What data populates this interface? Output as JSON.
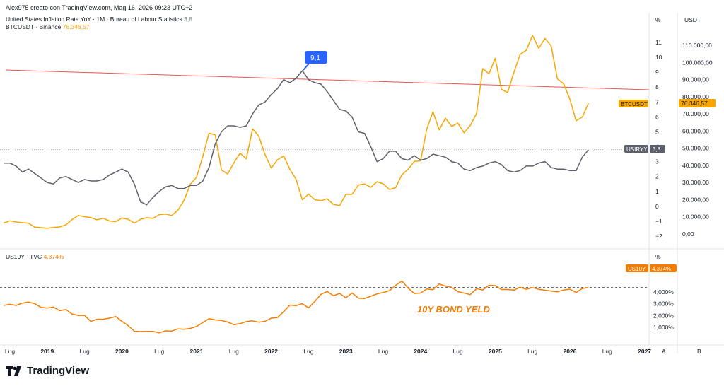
{
  "header": {
    "author_line": "Alex975 creato con TradingView.com, Mag 16, 2026 09:23 UTC+2"
  },
  "legend": {
    "inflation_label": "United States Inflation Rate YoY · 1M · Bureau of Labour Statistics",
    "inflation_value": "3,8",
    "btc_label": "BTCUSDT · Binance",
    "btc_value": "76.346,57",
    "bond_label": "US10Y · TVC",
    "bond_value": "4,374%"
  },
  "axes": {
    "left_unit": "%",
    "right_unit": "USDT",
    "bottom_unit": "%",
    "left_ticks": [
      "11",
      "10",
      "9",
      "8",
      "7",
      "6",
      "5",
      "4",
      "3",
      "2",
      "1",
      "0",
      "−1",
      "−2"
    ],
    "right_ticks": [
      "110.000,00",
      "100.000,00",
      "90.000,00",
      "80.000,00",
      "70.000,00",
      "60.000,00",
      "50.000,00",
      "40.000,00",
      "30.000,00",
      "20.000,00",
      "10.000,00",
      "0,00"
    ],
    "bond_ticks": [
      "4,000%",
      "3,000%",
      "2,000%",
      "1,000%"
    ],
    "x_labels": [
      "Lug",
      "2019",
      "Lug",
      "2020",
      "Lug",
      "2021",
      "Lug",
      "2022",
      "Lug",
      "2023",
      "Lug",
      "2024",
      "Lug",
      "2025",
      "Lug",
      "2026",
      "Lug",
      "2027"
    ],
    "corner_a": "A",
    "corner_b": "B"
  },
  "tags": {
    "btc_tag": "BTCUSDT",
    "btc_price": "76.346,57",
    "usiryy_tag": "USIRYY",
    "usiryy_value": "3,8",
    "us10y_tag": "US10Y",
    "us10y_value": "4,374%",
    "peak_label": "9,1"
  },
  "annotation": {
    "bond_note": "10Y BOND YELD"
  },
  "brand": {
    "logo_text": "TradingView"
  },
  "colors": {
    "inflation": "#5d606b",
    "btc": "#f7a600",
    "bond": "#f57c00",
    "trendline": "#ef5350",
    "peak_badge": "#2962ff"
  },
  "chart_data": [
    {
      "type": "line",
      "title": "United States Inflation Rate YoY",
      "ylabel": "%",
      "ylim": [
        -2,
        11
      ],
      "series": [
        {
          "name": "United States Inflation Rate YoY",
          "x": [
            "2018-06",
            "2018-07",
            "2018-08",
            "2018-09",
            "2018-10",
            "2018-11",
            "2018-12",
            "2019-01",
            "2019-02",
            "2019-03",
            "2019-04",
            "2019-05",
            "2019-06",
            "2019-07",
            "2019-08",
            "2019-09",
            "2019-10",
            "2019-11",
            "2019-12",
            "2020-01",
            "2020-02",
            "2020-03",
            "2020-04",
            "2020-05",
            "2020-06",
            "2020-07",
            "2020-08",
            "2020-09",
            "2020-10",
            "2020-11",
            "2020-12",
            "2021-01",
            "2021-02",
            "2021-03",
            "2021-04",
            "2021-05",
            "2021-06",
            "2021-07",
            "2021-08",
            "2021-09",
            "2021-10",
            "2021-11",
            "2021-12",
            "2022-01",
            "2022-02",
            "2022-03",
            "2022-04",
            "2022-05",
            "2022-06",
            "2022-07",
            "2022-08",
            "2022-09",
            "2022-10",
            "2022-11",
            "2022-12",
            "2023-01",
            "2023-02",
            "2023-03",
            "2023-04",
            "2023-05",
            "2023-06",
            "2023-07",
            "2023-08",
            "2023-09",
            "2023-10",
            "2023-11",
            "2023-12",
            "2024-01",
            "2024-02",
            "2024-03",
            "2024-04",
            "2024-05",
            "2024-06",
            "2024-07",
            "2024-08",
            "2024-09",
            "2024-10",
            "2024-11",
            "2024-12",
            "2025-01",
            "2025-02",
            "2025-03",
            "2025-04",
            "2025-05",
            "2025-06",
            "2025-07",
            "2025-08",
            "2025-09",
            "2025-10",
            "2025-11",
            "2025-12",
            "2026-01",
            "2026-02",
            "2026-03",
            "2026-04"
          ],
          "values": [
            2.9,
            2.9,
            2.7,
            2.3,
            2.5,
            2.2,
            1.9,
            1.6,
            1.5,
            1.9,
            2.0,
            1.8,
            1.6,
            1.8,
            1.7,
            1.7,
            1.8,
            2.1,
            2.3,
            2.5,
            2.3,
            1.5,
            0.3,
            0.1,
            0.6,
            1.0,
            1.3,
            1.4,
            1.2,
            1.2,
            1.4,
            1.4,
            1.7,
            2.6,
            4.2,
            5.0,
            5.4,
            5.4,
            5.3,
            5.4,
            6.2,
            6.8,
            7.0,
            7.5,
            7.9,
            8.5,
            8.3,
            8.6,
            9.1,
            8.5,
            8.3,
            8.2,
            7.7,
            7.1,
            6.5,
            6.4,
            6.0,
            5.0,
            4.9,
            4.0,
            3.0,
            3.2,
            3.7,
            3.7,
            3.2,
            3.1,
            3.4,
            3.1,
            3.2,
            3.5,
            3.4,
            3.3,
            3.0,
            2.9,
            2.5,
            2.4,
            2.6,
            2.7,
            2.9,
            3.0,
            2.8,
            2.4,
            2.3,
            2.4,
            2.7,
            2.7,
            2.9,
            3.0,
            2.6,
            2.5,
            2.5,
            2.4,
            2.4,
            3.3,
            3.8
          ]
        }
      ]
    },
    {
      "type": "line",
      "title": "BTCUSDT",
      "ylabel": "USDT",
      "ylim": [
        -10000,
        120000
      ],
      "series": [
        {
          "name": "BTCUSDT",
          "x": [
            "2018-06",
            "2018-07",
            "2018-08",
            "2018-09",
            "2018-10",
            "2018-11",
            "2018-12",
            "2019-01",
            "2019-02",
            "2019-03",
            "2019-04",
            "2019-05",
            "2019-06",
            "2019-07",
            "2019-08",
            "2019-09",
            "2019-10",
            "2019-11",
            "2019-12",
            "2020-01",
            "2020-02",
            "2020-03",
            "2020-04",
            "2020-05",
            "2020-06",
            "2020-07",
            "2020-08",
            "2020-09",
            "2020-10",
            "2020-11",
            "2020-12",
            "2021-01",
            "2021-02",
            "2021-03",
            "2021-04",
            "2021-05",
            "2021-06",
            "2021-07",
            "2021-08",
            "2021-09",
            "2021-10",
            "2021-11",
            "2021-12",
            "2022-01",
            "2022-02",
            "2022-03",
            "2022-04",
            "2022-05",
            "2022-06",
            "2022-07",
            "2022-08",
            "2022-09",
            "2022-10",
            "2022-11",
            "2022-12",
            "2023-01",
            "2023-02",
            "2023-03",
            "2023-04",
            "2023-05",
            "2023-06",
            "2023-07",
            "2023-08",
            "2023-09",
            "2023-10",
            "2023-11",
            "2023-12",
            "2024-01",
            "2024-02",
            "2024-03",
            "2024-04",
            "2024-05",
            "2024-06",
            "2024-07",
            "2024-08",
            "2024-09",
            "2024-10",
            "2024-11",
            "2024-12",
            "2025-01",
            "2025-02",
            "2025-03",
            "2025-04",
            "2025-05",
            "2025-06",
            "2025-07",
            "2025-08",
            "2025-09",
            "2025-10",
            "2025-11",
            "2025-12",
            "2026-01",
            "2026-02",
            "2026-03",
            "2026-04"
          ],
          "values": [
            6400,
            7700,
            7000,
            6600,
            6300,
            4000,
            3700,
            3400,
            3800,
            4100,
            5300,
            8500,
            10800,
            10100,
            9600,
            8300,
            9200,
            7600,
            7200,
            9300,
            8600,
            6400,
            8600,
            9500,
            9100,
            11300,
            11600,
            10800,
            13800,
            19700,
            29000,
            33100,
            45200,
            58800,
            57700,
            37300,
            35000,
            41500,
            47100,
            43800,
            61300,
            57000,
            46300,
            38500,
            43200,
            45500,
            37700,
            31800,
            19900,
            23300,
            20000,
            19400,
            20500,
            17200,
            16500,
            23100,
            23100,
            28500,
            29200,
            27200,
            30500,
            29200,
            25900,
            27000,
            34500,
            37700,
            42300,
            42600,
            61100,
            71300,
            60600,
            67500,
            62700,
            64600,
            59000,
            63300,
            70200,
            96400,
            93400,
            102400,
            84300,
            82500,
            94200,
            104600,
            107100,
            115700,
            108200,
            114000,
            109500,
            90400,
            87500,
            78600,
            66000,
            68200,
            76300
          ]
        }
      ]
    },
    {
      "type": "line",
      "title": "US10Y",
      "ylabel": "%",
      "ylim": [
        0,
        5.2
      ],
      "series": [
        {
          "name": "US10Y",
          "x": [
            "2018-06",
            "2018-07",
            "2018-08",
            "2018-09",
            "2018-10",
            "2018-11",
            "2018-12",
            "2019-01",
            "2019-02",
            "2019-03",
            "2019-04",
            "2019-05",
            "2019-06",
            "2019-07",
            "2019-08",
            "2019-09",
            "2019-10",
            "2019-11",
            "2019-12",
            "2020-01",
            "2020-02",
            "2020-03",
            "2020-04",
            "2020-05",
            "2020-06",
            "2020-07",
            "2020-08",
            "2020-09",
            "2020-10",
            "2020-11",
            "2020-12",
            "2021-01",
            "2021-02",
            "2021-03",
            "2021-04",
            "2021-05",
            "2021-06",
            "2021-07",
            "2021-08",
            "2021-09",
            "2021-10",
            "2021-11",
            "2021-12",
            "2022-01",
            "2022-02",
            "2022-03",
            "2022-04",
            "2022-05",
            "2022-06",
            "2022-07",
            "2022-08",
            "2022-09",
            "2022-10",
            "2022-11",
            "2022-12",
            "2023-01",
            "2023-02",
            "2023-03",
            "2023-04",
            "2023-05",
            "2023-06",
            "2023-07",
            "2023-08",
            "2023-09",
            "2023-10",
            "2023-11",
            "2023-12",
            "2024-01",
            "2024-02",
            "2024-03",
            "2024-04",
            "2024-05",
            "2024-06",
            "2024-07",
            "2024-08",
            "2024-09",
            "2024-10",
            "2024-11",
            "2024-12",
            "2025-01",
            "2025-02",
            "2025-03",
            "2025-04",
            "2025-05",
            "2025-06",
            "2025-07",
            "2025-08",
            "2025-09",
            "2025-10",
            "2025-11",
            "2025-12",
            "2026-01",
            "2026-02",
            "2026-03",
            "2026-04"
          ],
          "values": [
            2.86,
            2.96,
            2.86,
            3.06,
            3.14,
            3.01,
            2.69,
            2.63,
            2.72,
            2.41,
            2.51,
            2.13,
            2.01,
            2.02,
            1.5,
            1.68,
            1.69,
            1.78,
            1.92,
            1.51,
            1.15,
            0.67,
            0.64,
            0.65,
            0.66,
            0.53,
            0.7,
            0.68,
            0.87,
            0.84,
            0.91,
            1.07,
            1.4,
            1.74,
            1.63,
            1.58,
            1.45,
            1.22,
            1.31,
            1.49,
            1.55,
            1.44,
            1.51,
            1.78,
            1.83,
            2.34,
            2.89,
            2.84,
            3.01,
            2.65,
            3.19,
            3.8,
            4.05,
            3.68,
            3.88,
            3.51,
            3.92,
            3.48,
            3.44,
            3.64,
            3.84,
            3.96,
            4.11,
            4.57,
            4.93,
            4.33,
            3.88,
            3.91,
            4.25,
            4.2,
            4.68,
            4.5,
            4.4,
            4.03,
            3.91,
            3.78,
            4.28,
            4.17,
            4.57,
            4.54,
            4.21,
            4.21,
            4.16,
            4.4,
            4.23,
            4.37,
            4.23,
            4.15,
            4.08,
            4.02,
            4.17,
            4.24,
            3.96,
            4.3,
            4.37
          ]
        }
      ]
    }
  ]
}
